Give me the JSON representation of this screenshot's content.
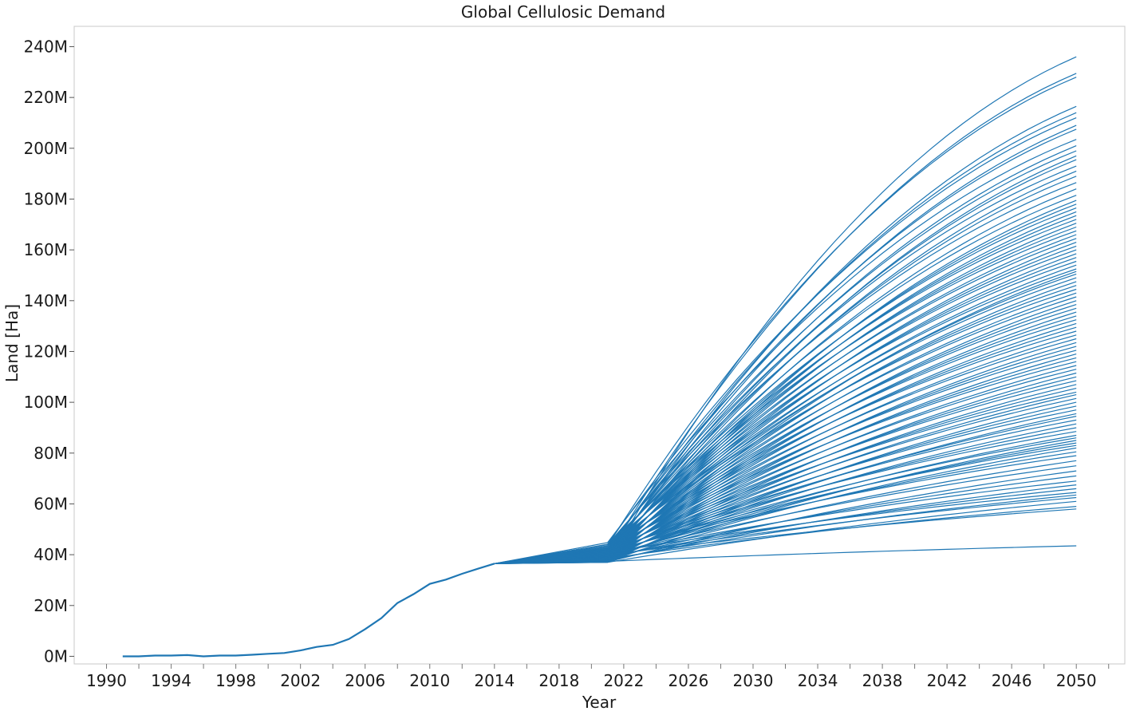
{
  "chart_data": {
    "type": "line",
    "title": "Global Cellulosic Demand",
    "xlabel": "Year",
    "ylabel": "Land [Ha]",
    "xlim": [
      1988,
      2053
    ],
    "ylim": [
      -3000000,
      248000000
    ],
    "x_ticks": [
      1990,
      1994,
      1998,
      2002,
      2006,
      2010,
      2014,
      2018,
      2022,
      2026,
      2030,
      2034,
      2038,
      2042,
      2046,
      2050
    ],
    "x_tick_labels": [
      "1990",
      "1994",
      "1998",
      "2002",
      "2006",
      "2010",
      "2014",
      "2018",
      "2022",
      "2026",
      "2030",
      "2034",
      "2038",
      "2042",
      "2046",
      "2050"
    ],
    "y_ticks": [
      0,
      20000000,
      40000000,
      60000000,
      80000000,
      100000000,
      120000000,
      140000000,
      160000000,
      180000000,
      200000000,
      220000000,
      240000000
    ],
    "y_tick_labels": [
      "0M",
      "20M",
      "40M",
      "60M",
      "80M",
      "100M",
      "120M",
      "140M",
      "160M",
      "180M",
      "200M",
      "220M",
      "240M"
    ],
    "grid": false,
    "legend": "none",
    "line_color": "#1f77b4",
    "historical": {
      "x": [
        1991,
        1992,
        1993,
        1994,
        1995,
        1996,
        1997,
        1998,
        1999,
        2000,
        2001,
        2002,
        2003,
        2004,
        2005,
        2006,
        2007,
        2008,
        2009,
        2010,
        2011,
        2012,
        2013,
        2014
      ],
      "y": [
        0,
        0,
        300000,
        300000,
        500000,
        0,
        300000,
        300000,
        600000,
        1000000,
        1300000,
        2300000,
        3700000,
        4500000,
        6800000,
        10700000,
        15000000,
        21000000,
        24500000,
        28500000,
        30200000,
        32500000,
        34500000,
        36500000
      ]
    },
    "projection_years": [
      2014,
      2021,
      2050
    ],
    "projection_note": "Ensemble of projected scenarios from 2014 to 2050; each series rises from 36.5M in 2014 through a 2021 value of about 37M–46M to its 2050 value.",
    "end_values_2050": [
      236000000,
      229500000,
      228000000,
      216500000,
      214000000,
      212000000,
      209000000,
      207500000,
      203500000,
      201000000,
      199000000,
      197000000,
      195500000,
      193000000,
      191000000,
      189000000,
      186500000,
      184000000,
      181500000,
      179500000,
      178000000,
      176500000,
      175000000,
      173500000,
      172000000,
      170500000,
      169000000,
      167500000,
      166000000,
      164500000,
      163000000,
      161500000,
      160000000,
      158500000,
      157000000,
      155500000,
      154000000,
      152500000,
      151500000,
      150500000,
      149000000,
      147500000,
      146000000,
      144500000,
      143000000,
      141500000,
      140000000,
      138500000,
      137000000,
      135500000,
      134000000,
      132500000,
      131000000,
      129500000,
      128000000,
      126500000,
      125000000,
      123500000,
      122000000,
      120500000,
      119000000,
      117500000,
      116000000,
      114500000,
      113000000,
      111500000,
      110000000,
      108500000,
      107000000,
      105500000,
      104000000,
      103000000,
      101500000,
      100000000,
      98500000,
      97000000,
      95500000,
      94500000,
      93000000,
      91500000,
      90000000,
      88500000,
      87000000,
      86000000,
      85000000,
      84000000,
      83000000,
      82000000,
      80500000,
      79000000,
      77000000,
      75000000,
      73000000,
      71000000,
      69000000,
      67500000,
      66000000,
      64500000,
      63500000,
      62500000,
      61000000,
      59000000,
      58000000,
      43500000
    ]
  }
}
